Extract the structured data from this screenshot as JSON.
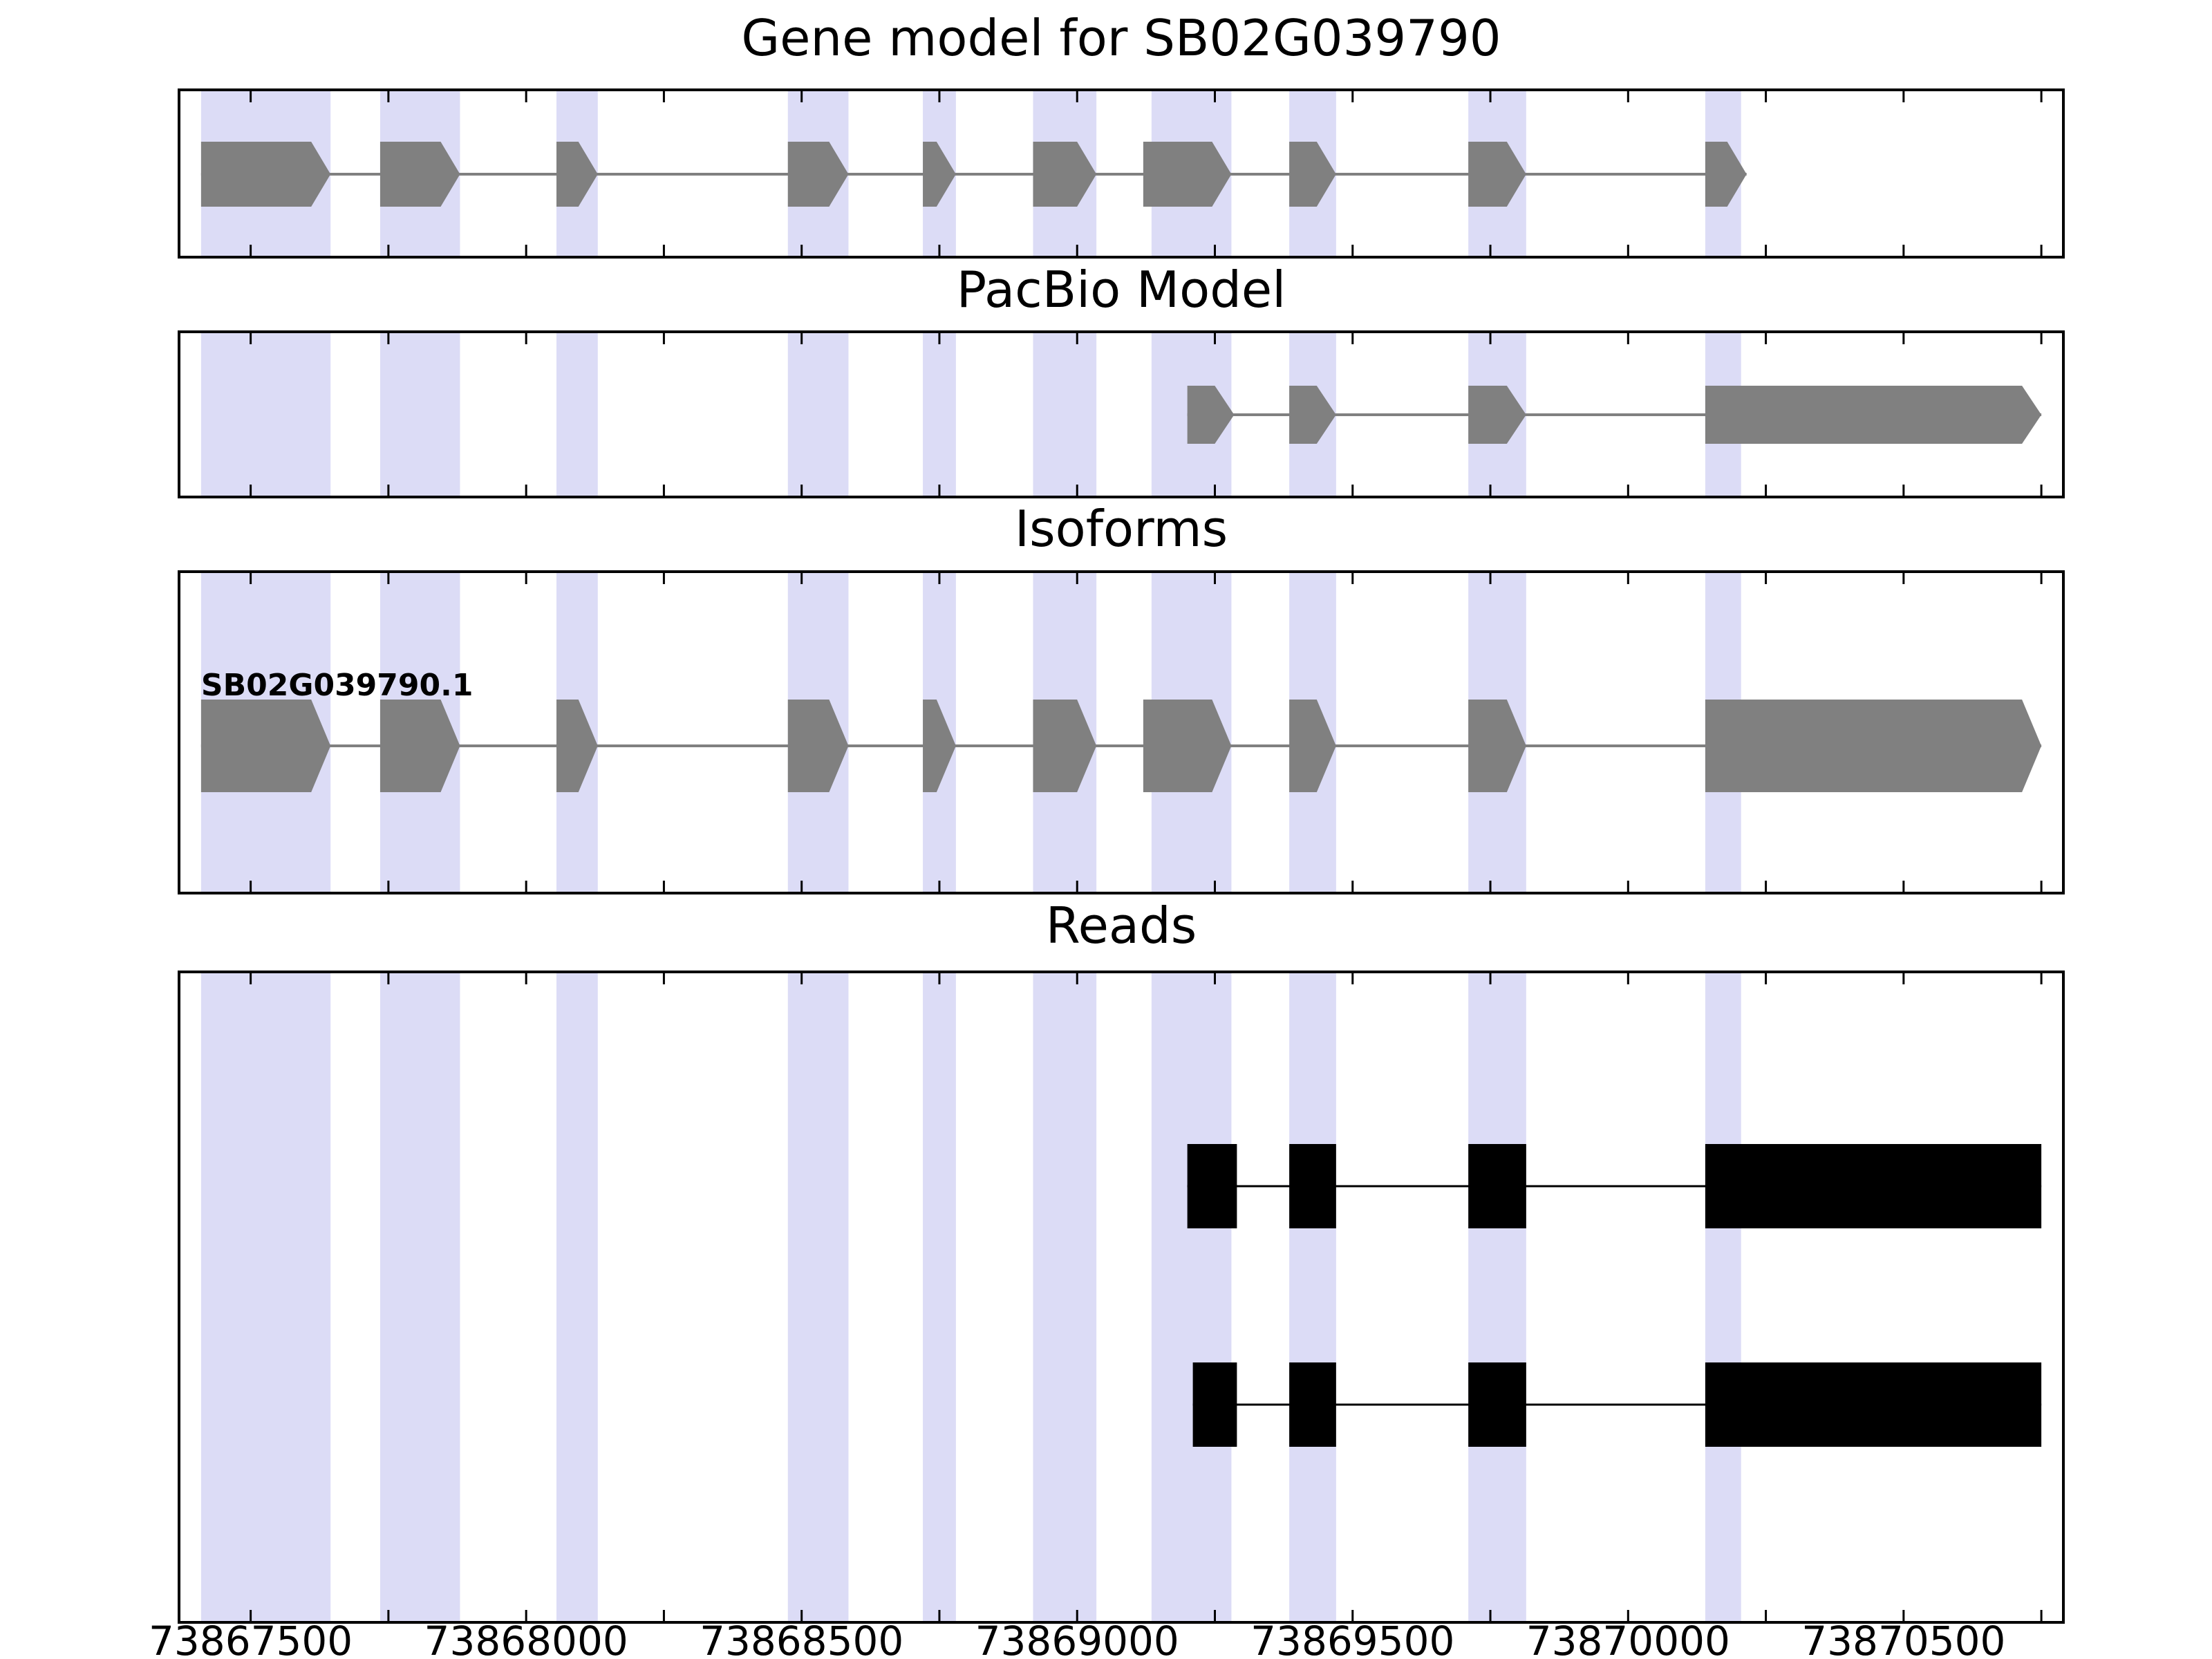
{
  "figure": {
    "background_color": "#ffffff",
    "band_color": "#dcdcf6",
    "model_color": "#808080",
    "read_color": "#000000",
    "axis_color": "#000000"
  },
  "chart_data": {
    "type": "gene-model-browser",
    "x_axis": {
      "min": 73867370,
      "max": 73870790,
      "tick_values": [
        73867500,
        73868000,
        73868500,
        73869000,
        73869500,
        73870000,
        73870500
      ],
      "tick_labels": [
        "73867500",
        "73868000",
        "73868500",
        "73869000",
        "73869500",
        "73870000",
        "73870500"
      ],
      "minor_tick_interval": 250
    },
    "highlight_regions": [
      [
        73867410,
        73867645
      ],
      [
        73867735,
        73867880
      ],
      [
        73868055,
        73868130
      ],
      [
        73868475,
        73868585
      ],
      [
        73868720,
        73868780
      ],
      [
        73868920,
        73869035
      ],
      [
        73869135,
        73869280
      ],
      [
        73869385,
        73869470
      ],
      [
        73869710,
        73869815
      ],
      [
        73870140,
        73870205
      ]
    ],
    "panels": [
      {
        "title": "Gene model for SB02G039790",
        "type": "gene_model",
        "strand": "+",
        "exons": [
          [
            73867410,
            73867645
          ],
          [
            73867735,
            73867880
          ],
          [
            73868055,
            73868130
          ],
          [
            73868475,
            73868585
          ],
          [
            73868720,
            73868780
          ],
          [
            73868920,
            73869035
          ],
          [
            73869120,
            73869280
          ],
          [
            73869385,
            73869470
          ],
          [
            73869710,
            73869815
          ],
          [
            73870140,
            73870215
          ]
        ]
      },
      {
        "title": "PacBio Model",
        "type": "pacbio_model",
        "strand": "+",
        "exons": [
          [
            73869200,
            73869285
          ],
          [
            73869385,
            73869470
          ],
          [
            73869710,
            73869815
          ],
          [
            73870140,
            73870750
          ]
        ]
      },
      {
        "title": "Isoforms",
        "type": "isoforms",
        "isoforms": [
          {
            "name": "SB02G039790.1",
            "strand": "+",
            "exons": [
              [
                73867410,
                73867645
              ],
              [
                73867735,
                73867880
              ],
              [
                73868055,
                73868130
              ],
              [
                73868475,
                73868585
              ],
              [
                73868720,
                73868780
              ],
              [
                73868920,
                73869035
              ],
              [
                73869120,
                73869280
              ],
              [
                73869385,
                73869470
              ],
              [
                73869710,
                73869815
              ],
              [
                73870140,
                73870750
              ]
            ]
          }
        ]
      },
      {
        "title": "Reads",
        "type": "reads",
        "reads": [
          {
            "blocks": [
              [
                73869200,
                73869290
              ],
              [
                73869385,
                73869470
              ],
              [
                73869710,
                73869815
              ],
              [
                73870140,
                73870750
              ]
            ]
          },
          {
            "blocks": [
              [
                73869210,
                73869290
              ],
              [
                73869385,
                73869470
              ],
              [
                73869710,
                73869815
              ],
              [
                73870140,
                73870750
              ]
            ]
          }
        ]
      }
    ]
  }
}
